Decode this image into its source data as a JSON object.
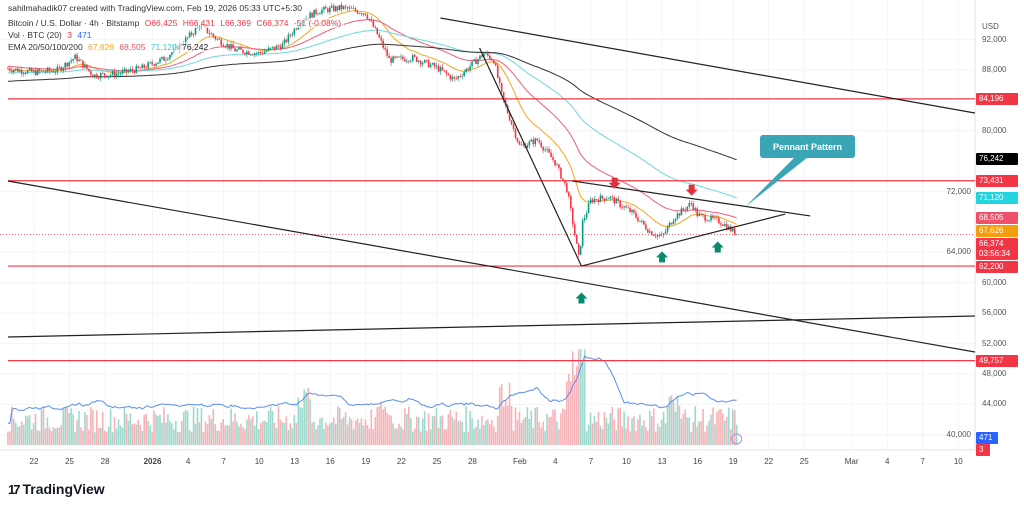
{
  "watermark": "sahilmahadik07 created with TradingView.com, Feb 19, 2026 05:33 UTC+5:30",
  "legend": {
    "symbol": "Bitcoin / U.S. Dollar · 4h · Bitstamp",
    "open": "O66,425",
    "high": "H66,431",
    "low": "L66,369",
    "close": "C66,374",
    "change": "-51 (-0.08%)",
    "vol_label": "Vol · BTC (20)",
    "vol_a": "3",
    "vol_b": "471",
    "ema_label": "EMA 20/50/100/200",
    "ema20": "67,626",
    "ema50": "68,505",
    "ema100": "71,120",
    "ema200": "76,242"
  },
  "price_axis": {
    "currency": "USD",
    "ticks": [
      "92,000",
      "88,000",
      "80,000",
      "72,000",
      "64,000",
      "60,000",
      "56,000",
      "52,000",
      "48,000",
      "44,000",
      "40,000"
    ],
    "tick_values": [
      92000,
      88000,
      80000,
      72000,
      64000,
      60000,
      56000,
      52000,
      48000,
      44000,
      40000
    ],
    "badges": [
      {
        "text": "84,196",
        "value": 84196,
        "color": "#f23645"
      },
      {
        "text": "76,242",
        "value": 76242,
        "color": "#000000"
      },
      {
        "text": "73,431",
        "value": 73431,
        "color": "#f23645"
      },
      {
        "text": "71,120",
        "value": 71120,
        "color": "#22d3e0"
      },
      {
        "text": "68,505",
        "value": 68505,
        "color": "#f0506a"
      },
      {
        "text": "67,626",
        "value": 67626,
        "color": "#f59d0e"
      },
      {
        "text": "66,374",
        "value": 66374,
        "color": "#f23645",
        "sub": "03:56:34"
      },
      {
        "text": "62,200",
        "value": 62200,
        "color": "#f23645"
      },
      {
        "text": "49,757",
        "value": 49757,
        "color": "#f23645"
      }
    ],
    "vol_badges": [
      {
        "text": "471",
        "color": "#2962ff"
      },
      {
        "text": "3",
        "color": "#f23645"
      }
    ]
  },
  "time_axis": [
    {
      "t": "22",
      "d": 0
    },
    {
      "t": "25",
      "d": 3
    },
    {
      "t": "28",
      "d": 6
    },
    {
      "t": "2026",
      "d": 10,
      "bold": true
    },
    {
      "t": "4",
      "d": 13
    },
    {
      "t": "7",
      "d": 16
    },
    {
      "t": "10",
      "d": 19
    },
    {
      "t": "13",
      "d": 22
    },
    {
      "t": "16",
      "d": 25
    },
    {
      "t": "19",
      "d": 28
    },
    {
      "t": "22",
      "d": 31
    },
    {
      "t": "25",
      "d": 34
    },
    {
      "t": "28",
      "d": 37
    },
    {
      "t": "Feb",
      "d": 41
    },
    {
      "t": "4",
      "d": 44
    },
    {
      "t": "7",
      "d": 47
    },
    {
      "t": "10",
      "d": 50
    },
    {
      "t": "13",
      "d": 53
    },
    {
      "t": "16",
      "d": 56
    },
    {
      "t": "19",
      "d": 59
    },
    {
      "t": "22",
      "d": 62
    },
    {
      "t": "25",
      "d": 65
    },
    {
      "t": "Mar",
      "d": 69
    },
    {
      "t": "4",
      "d": 72
    },
    {
      "t": "7",
      "d": 75
    },
    {
      "t": "10",
      "d": 78
    }
  ],
  "annotation": {
    "label": "Pennant Pattern"
  },
  "colors": {
    "up": "#089981",
    "down": "#f23645",
    "ema20": "#f5a623",
    "ema50": "#ef5f78",
    "ema100": "#6fd6df",
    "ema200": "#333333",
    "hline": "#f23645",
    "vol_ma": "#5b8def"
  },
  "chart_data": {
    "type": "candlestick",
    "title": "Bitcoin / U.S. Dollar · 4h · Bitstamp",
    "ylabel": "USD",
    "ylim": [
      38000,
      96000
    ],
    "x_unit": "days since Dec 22, 2025",
    "price_path": [
      [
        -2.2,
        88200
      ],
      [
        0,
        87700
      ],
      [
        2,
        88000
      ],
      [
        3.5,
        89700
      ],
      [
        5,
        87300
      ],
      [
        7,
        87500
      ],
      [
        9,
        88200
      ],
      [
        11,
        89500
      ],
      [
        12.5,
        91500
      ],
      [
        14,
        93900
      ],
      [
        15.5,
        92000
      ],
      [
        17,
        90600
      ],
      [
        19,
        90200
      ],
      [
        21,
        91300
      ],
      [
        22.5,
        94500
      ],
      [
        24,
        95800
      ],
      [
        26,
        96200
      ],
      [
        28,
        95500
      ],
      [
        29,
        92600
      ],
      [
        30,
        89300
      ],
      [
        32,
        89600
      ],
      [
        34,
        88300
      ],
      [
        35.5,
        86700
      ],
      [
        37,
        88800
      ],
      [
        38,
        90200
      ],
      [
        38.8,
        89300
      ],
      [
        39.5,
        84500
      ],
      [
        41,
        77900
      ],
      [
        42.5,
        78800
      ],
      [
        44,
        75800
      ],
      [
        45,
        72200
      ],
      [
        46,
        63000
      ],
      [
        46.3,
        68000
      ],
      [
        47,
        70900
      ],
      [
        48.5,
        71300
      ],
      [
        50.5,
        69200
      ],
      [
        52,
        66700
      ],
      [
        53,
        66000
      ],
      [
        54,
        68600
      ],
      [
        55.5,
        70500
      ],
      [
        56,
        68900
      ],
      [
        58,
        68000
      ],
      [
        59.3,
        66374
      ]
    ],
    "volume_spikes": [
      [
        46,
        1.0
      ],
      [
        45.5,
        0.75
      ],
      [
        39.8,
        0.6
      ],
      [
        22.8,
        0.55
      ],
      [
        54,
        0.5
      ],
      [
        29.5,
        0.45
      ]
    ],
    "horizontal_levels": [
      84196,
      73431,
      62200,
      49757
    ],
    "last_price": 66374,
    "trendlines": [
      {
        "name": "upper-channel",
        "from": [
          34.3,
          94842
        ],
        "to": [
          79.4,
          82342
        ]
      },
      {
        "name": "lower-channel",
        "from": [
          -2.2,
          73395
        ],
        "to": [
          79.4,
          50895
        ]
      },
      {
        "name": "long-support",
        "from": [
          -2.2,
          52868
        ],
        "to": [
          79.4,
          55632
        ]
      },
      {
        "name": "flagpole",
        "from": [
          37.6,
          90900
        ],
        "to": [
          46.2,
          62200
        ]
      },
      {
        "name": "pennant-upper",
        "from": [
          45.4,
          73400
        ],
        "to": [
          65.5,
          68800
        ]
      },
      {
        "name": "pennant-lower",
        "from": [
          46.2,
          62200
        ],
        "to": [
          63.4,
          69050
        ]
      }
    ],
    "arrows": [
      {
        "type": "down",
        "d": 49,
        "price": 72500
      },
      {
        "type": "down",
        "d": 55.5,
        "price": 71600
      },
      {
        "type": "up",
        "d": 46.2,
        "price": 58600
      },
      {
        "type": "up",
        "d": 53,
        "price": 64000
      },
      {
        "type": "up",
        "d": 57.7,
        "price": 65300
      }
    ],
    "ema_final": {
      "ema20": 67626,
      "ema50": 68505,
      "ema100": 71120,
      "ema200": 76242
    }
  }
}
